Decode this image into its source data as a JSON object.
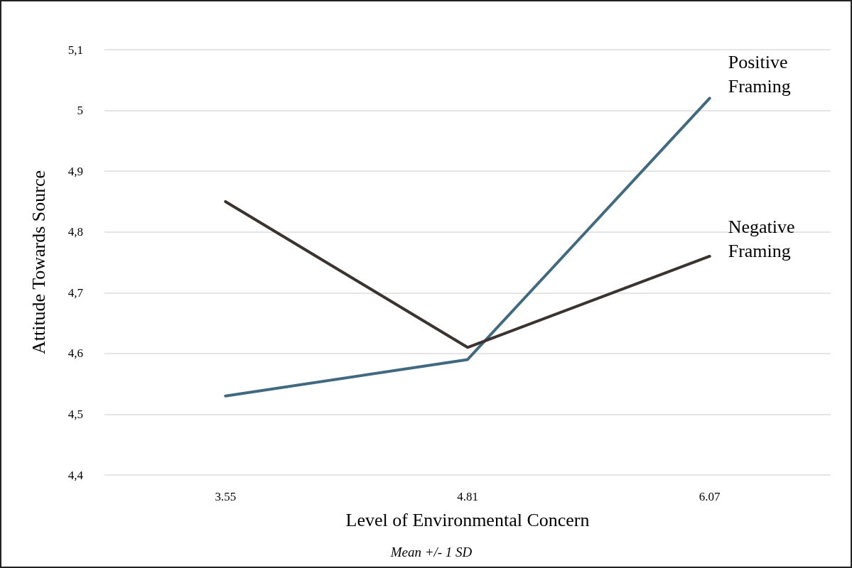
{
  "chart_data": {
    "type": "line",
    "xlabel": "Level of Environmental Concern",
    "ylabel": "Attitude Towards Source",
    "annotations": [
      "Mean +/- 1 SD"
    ],
    "categories": [
      "3.55",
      "4.81",
      "6.07"
    ],
    "series": [
      {
        "name": "Positive Framing",
        "color": "#41697f",
        "values": [
          4.53,
          4.59,
          5.02
        ]
      },
      {
        "name": "Negative Framing",
        "color": "#3a3330",
        "values": [
          4.85,
          4.61,
          4.76
        ]
      }
    ],
    "ylim": [
      4.4,
      5.1
    ],
    "yticks": [
      {
        "value": 4.4,
        "label": "4,4"
      },
      {
        "value": 4.5,
        "label": "4,5"
      },
      {
        "value": 4.6,
        "label": "4,6"
      },
      {
        "value": 4.7,
        "label": "4,7"
      },
      {
        "value": 4.8,
        "label": "4,8"
      },
      {
        "value": 4.9,
        "label": "4,9"
      },
      5,
      {
        "value": 5.1,
        "label": "5,1"
      }
    ],
    "grid": "y",
    "legend": false,
    "marker": "none",
    "line_style": "solid"
  }
}
